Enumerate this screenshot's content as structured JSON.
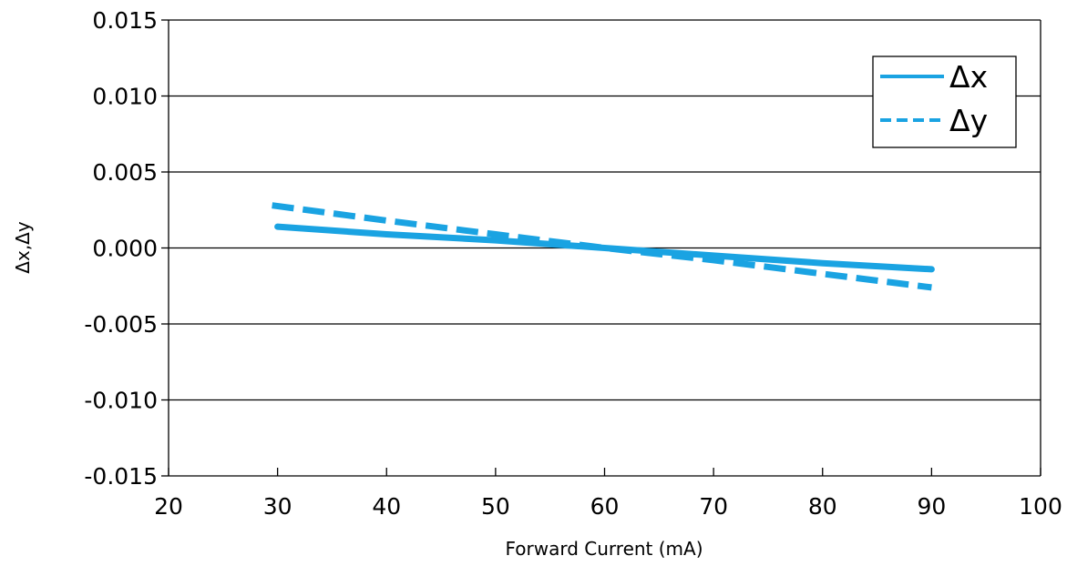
{
  "chart_data": {
    "type": "line",
    "title": "",
    "xlabel": "Forward Current (mA)",
    "ylabel": "Δx,Δy",
    "xlim": [
      20,
      100
    ],
    "ylim": [
      -0.015,
      0.015
    ],
    "x_ticks": [
      20,
      30,
      40,
      50,
      60,
      70,
      80,
      90,
      100
    ],
    "y_ticks": [
      0.015,
      0.01,
      0.005,
      0.0,
      -0.005,
      -0.01,
      -0.015
    ],
    "y_tick_labels": [
      "0.015",
      "0.010",
      "0.005",
      "0.000",
      "-0.005",
      "-0.010",
      "-0.015"
    ],
    "x_tick_labels": [
      "20",
      "30",
      "40",
      "50",
      "60",
      "70",
      "80",
      "90",
      "100"
    ],
    "grid": "horizontal",
    "legend": "top-right",
    "series": [
      {
        "name": "Δx",
        "style": "solid",
        "color": "#1AA3E2",
        "x": [
          30,
          40,
          50,
          60,
          70,
          80,
          90
        ],
        "y": [
          0.0014,
          0.0009,
          0.0005,
          0.0,
          -0.0005,
          -0.001,
          -0.0014
        ]
      },
      {
        "name": "Δy",
        "style": "dashed",
        "color": "#1AA3E2",
        "x": [
          29.5,
          40,
          50,
          60,
          70,
          80,
          90
        ],
        "y": [
          0.0028,
          0.0018,
          0.0009,
          0.0,
          -0.0008,
          -0.0017,
          -0.0026
        ]
      }
    ]
  }
}
